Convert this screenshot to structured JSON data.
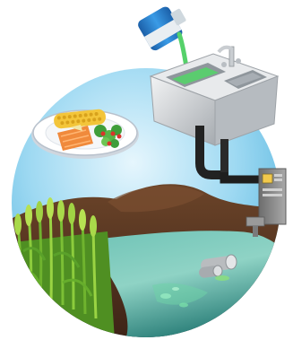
{
  "illustration": {
    "colors": {
      "sky_light": "#e6f6fd",
      "sky_mid": "#9ed9f2",
      "sky_deep": "#54b4de",
      "soil_dark": "#4a2c1b",
      "soil_mid": "#6b4429",
      "water_light": "#8fd3c5",
      "water_mid": "#49a89d",
      "water_dark": "#2b7f79",
      "wheat_green": "#66ad2c",
      "wheat_light": "#a9d94a",
      "sink_grey": "#c5c9cd",
      "pipe_dark": "#1e1e1e",
      "liquid_green": "#55d16a",
      "bottle_blue": "#2a82d4",
      "factory_grey": "#8a8a8a"
    },
    "elements": [
      {
        "name": "sky-circle",
        "icon": "sky-backdrop"
      },
      {
        "name": "soil-hills",
        "icon": "soil-mound"
      },
      {
        "name": "water-stream",
        "icon": "polluted-water"
      },
      {
        "name": "wheat-field",
        "icon": "wheat-plants"
      },
      {
        "name": "food-plate",
        "icon": "plate-of-corn-salmon-salad"
      },
      {
        "name": "kitchen-sink",
        "icon": "double-basin-sink"
      },
      {
        "name": "pouring-bottle",
        "icon": "bottle-pouring-liquid"
      },
      {
        "name": "drain-pipes",
        "icon": "drain-pipe"
      },
      {
        "name": "industrial-unit",
        "icon": "factory-control-box"
      },
      {
        "name": "outflow-pipes",
        "icon": "effluent-pipe-outlet"
      }
    ]
  }
}
